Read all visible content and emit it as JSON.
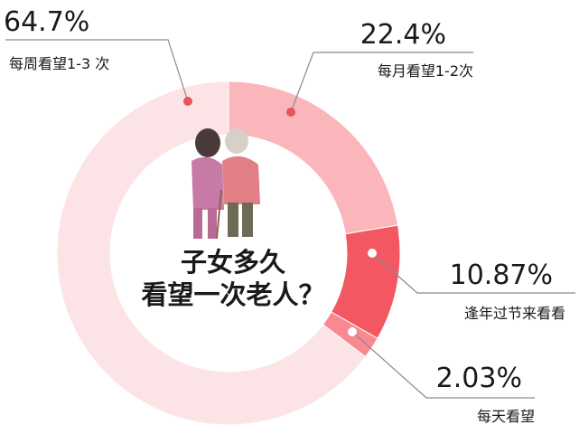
{
  "chart_data": {
    "type": "pie",
    "donut": true,
    "categories": [
      "每周看望1-3 次",
      "每月看望1-2次",
      "逢年过节来看看",
      "每天看望"
    ],
    "values": [
      64.7,
      22.4,
      10.87,
      2.03
    ],
    "value_labels": [
      "64.7%",
      "22.4%",
      "10.87%",
      "2.03%"
    ],
    "colors": [
      "#FCE3E5",
      "#FBB6BC",
      "#F35862",
      "#F88991"
    ],
    "title": [
      "子女多久",
      "看望一次老人？"
    ]
  },
  "illustration": {
    "name": "elderly-and-child-illustration"
  }
}
